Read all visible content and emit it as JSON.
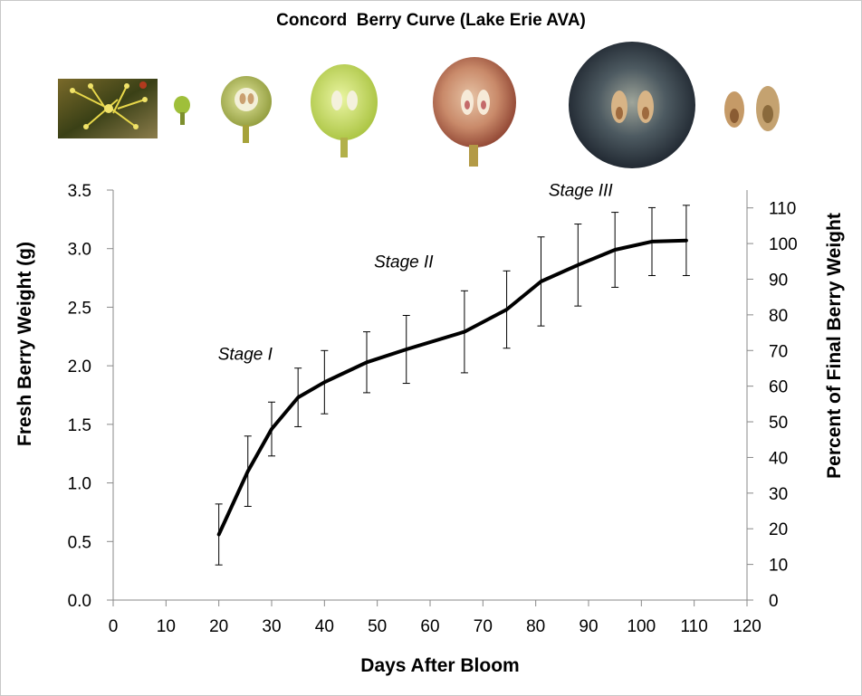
{
  "chart_data": {
    "type": "line",
    "title": "Concord  Berry Curve (Lake Erie AVA)",
    "xlabel": "Days After Bloom",
    "ylabel": "Fresh Berry Weight (g)",
    "y2label": "Percent of Final Berry Weight",
    "xlim": [
      0,
      120
    ],
    "ylim": [
      0,
      3.5
    ],
    "y2lim": [
      0,
      115
    ],
    "xticks": [
      0,
      10,
      20,
      30,
      40,
      50,
      60,
      70,
      80,
      90,
      100,
      110,
      120
    ],
    "yticks": [
      "0.0",
      "0.5",
      "1.0",
      "1.5",
      "2.0",
      "2.5",
      "3.0",
      "3.5"
    ],
    "y2ticks": [
      0,
      10,
      20,
      30,
      40,
      50,
      60,
      70,
      80,
      90,
      100,
      110
    ],
    "grid": false,
    "series": [
      {
        "points": [
          {
            "x": 20,
            "y": 0.56,
            "err": 0.26
          },
          {
            "x": 25.5,
            "y": 1.1,
            "err": 0.3
          },
          {
            "x": 30,
            "y": 1.46,
            "err": 0.23
          },
          {
            "x": 35,
            "y": 1.73,
            "err": 0.25
          },
          {
            "x": 40,
            "y": 1.86,
            "err": 0.27
          },
          {
            "x": 48,
            "y": 2.03,
            "err": 0.26
          },
          {
            "x": 55.5,
            "y": 2.14,
            "err": 0.29
          },
          {
            "x": 66.5,
            "y": 2.29,
            "err": 0.35
          },
          {
            "x": 74.5,
            "y": 2.48,
            "err": 0.33
          },
          {
            "x": 81,
            "y": 2.72,
            "err": 0.38
          },
          {
            "x": 88,
            "y": 2.86,
            "err": 0.35
          },
          {
            "x": 95,
            "y": 2.99,
            "err": 0.32
          },
          {
            "x": 102,
            "y": 3.06,
            "err": 0.29
          },
          {
            "x": 108.5,
            "y": 3.07,
            "err": 0.3
          }
        ]
      }
    ],
    "annotations": [
      {
        "text": "Stage I",
        "x": 25,
        "y": 2.05
      },
      {
        "text": "Stage II",
        "x": 55,
        "y": 2.84
      },
      {
        "text": "Stage III",
        "x": 88.5,
        "y": 3.45
      }
    ]
  },
  "images": [
    {
      "name": "bloom-flower-photo"
    },
    {
      "name": "fruit-set-photo"
    },
    {
      "name": "early-green-berry-photo"
    },
    {
      "name": "green-berry-photo"
    },
    {
      "name": "veraison-berry-photo"
    },
    {
      "name": "ripe-berry-photo"
    },
    {
      "name": "seeds-photo"
    }
  ]
}
